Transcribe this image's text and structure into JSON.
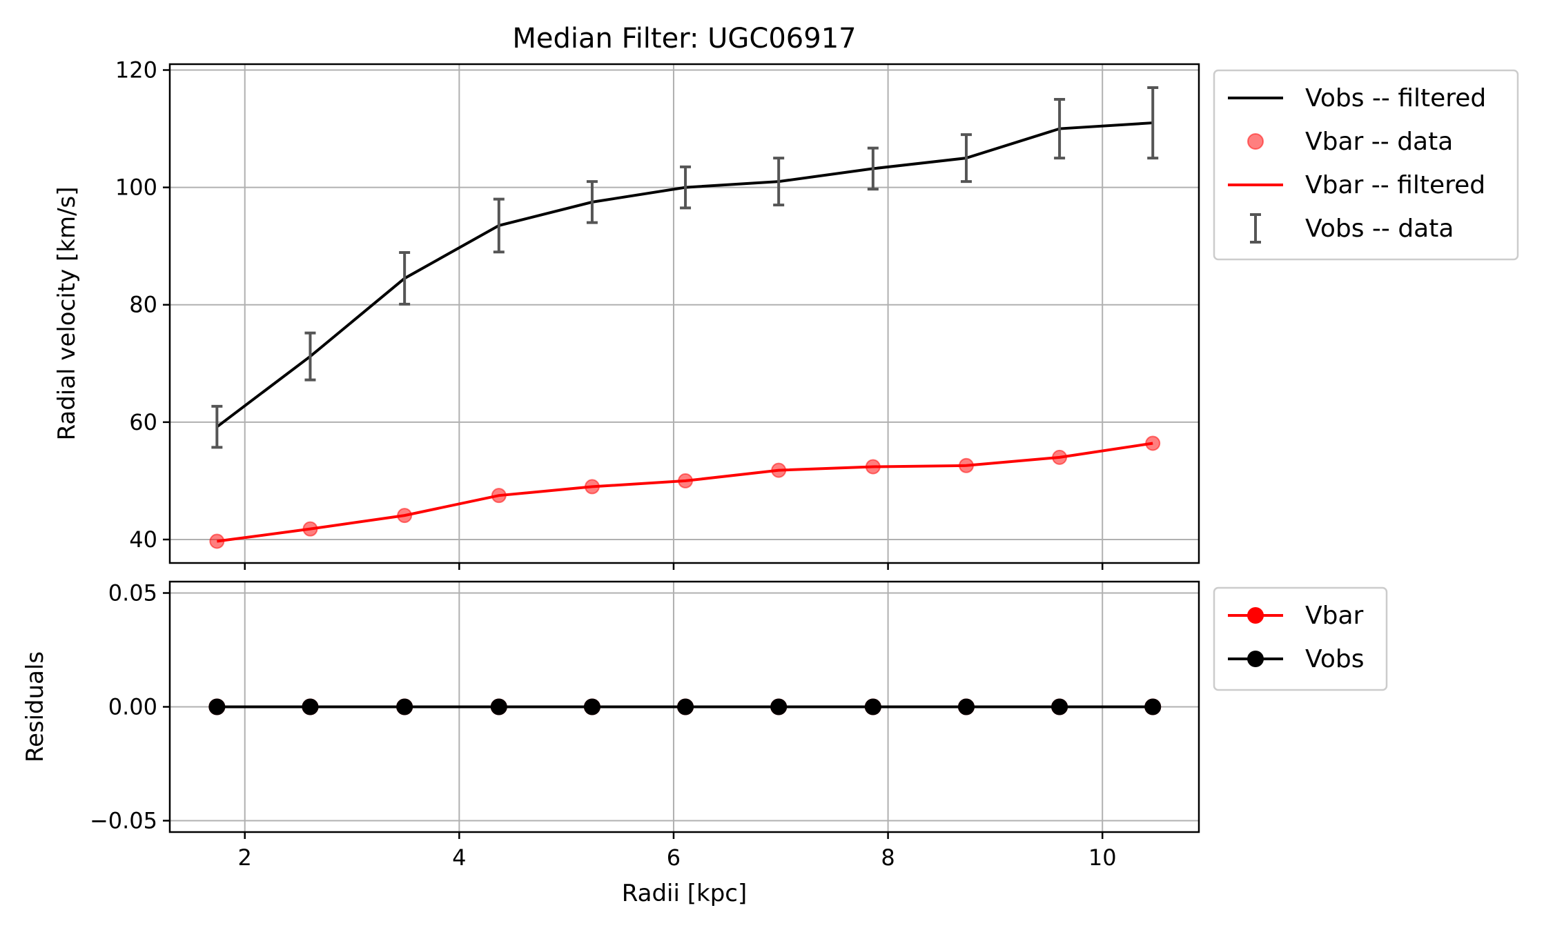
{
  "chart_data": [
    {
      "type": "line",
      "title": "Median Filter: UGC06917",
      "xlabel": "",
      "ylabel": "Radial velocity [km/s]",
      "xlim": [
        1.3,
        10.9
      ],
      "ylim": [
        36,
        121
      ],
      "xticks": [
        2,
        4,
        6,
        8,
        10
      ],
      "yticks": [
        40,
        60,
        80,
        100,
        120
      ],
      "grid": true,
      "legend_position": "outside-right-top",
      "series": [
        {
          "name": "Vobs -- filtered",
          "kind": "line",
          "color": "#000000",
          "x": [
            1.74,
            2.61,
            3.49,
            4.37,
            5.24,
            6.11,
            6.98,
            7.86,
            8.73,
            9.6,
            10.47
          ],
          "y": [
            59.2,
            71.2,
            84.5,
            93.5,
            97.5,
            100.0,
            101.0,
            103.2,
            105.0,
            110.0,
            111.0
          ]
        },
        {
          "name": "Vbar -- data",
          "kind": "scatter",
          "color": "#ff0000",
          "x": [
            1.74,
            2.61,
            3.49,
            4.37,
            5.24,
            6.11,
            6.98,
            7.86,
            8.73,
            9.6,
            10.47
          ],
          "y": [
            39.7,
            41.8,
            44.1,
            47.5,
            49.0,
            50.0,
            51.8,
            52.4,
            52.6,
            54.0,
            56.4
          ]
        },
        {
          "name": "Vbar -- filtered",
          "kind": "line",
          "color": "#ff0000",
          "x": [
            1.74,
            2.61,
            3.49,
            4.37,
            5.24,
            6.11,
            6.98,
            7.86,
            8.73,
            9.6,
            10.47
          ],
          "y": [
            39.7,
            41.8,
            44.1,
            47.5,
            49.0,
            50.0,
            51.8,
            52.4,
            52.6,
            54.0,
            56.4
          ]
        },
        {
          "name": "Vobs -- data",
          "kind": "errorbar",
          "color": "#555555",
          "x": [
            1.74,
            2.61,
            3.49,
            4.37,
            5.24,
            6.11,
            6.98,
            7.86,
            8.73,
            9.6,
            10.47
          ],
          "y": [
            59.2,
            71.2,
            84.5,
            93.5,
            97.5,
            100.0,
            101.0,
            103.2,
            105.0,
            110.0,
            111.0
          ],
          "err": [
            3.5,
            4.0,
            4.4,
            4.5,
            3.5,
            3.5,
            4.0,
            3.5,
            4.0,
            5.0,
            6.0
          ]
        }
      ]
    },
    {
      "type": "line",
      "title": "",
      "xlabel": "Radii [kpc]",
      "ylabel": "Residuals",
      "xlim": [
        1.3,
        10.9
      ],
      "ylim": [
        -0.055,
        0.055
      ],
      "xticks": [
        2,
        4,
        6,
        8,
        10
      ],
      "yticks": [
        -0.05,
        0.0,
        0.05
      ],
      "ytick_labels": [
        "−0.05",
        "0.00",
        "0.05"
      ],
      "grid": true,
      "legend_position": "outside-right-top",
      "series": [
        {
          "name": "Vbar",
          "kind": "line-marker",
          "color": "#ff0000",
          "x": [
            1.74,
            2.61,
            3.49,
            4.37,
            5.24,
            6.11,
            6.98,
            7.86,
            8.73,
            9.6,
            10.47
          ],
          "y": [
            0,
            0,
            0,
            0,
            0,
            0,
            0,
            0,
            0,
            0,
            0
          ]
        },
        {
          "name": "Vobs",
          "kind": "line-marker",
          "color": "#000000",
          "x": [
            1.74,
            2.61,
            3.49,
            4.37,
            5.24,
            6.11,
            6.98,
            7.86,
            8.73,
            9.6,
            10.47
          ],
          "y": [
            0,
            0,
            0,
            0,
            0,
            0,
            0,
            0,
            0,
            0,
            0
          ]
        }
      ]
    }
  ]
}
